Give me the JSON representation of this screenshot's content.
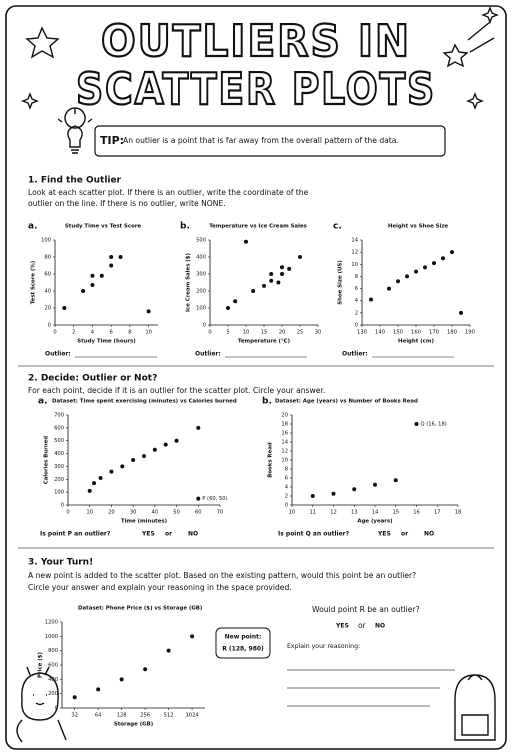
{
  "header": {
    "title_line1": "OUTLIERS IN",
    "title_line2": "SCATTER PLOTS",
    "tip_label": "TIP:",
    "tip_text": "An outlier is a point that is far away from the overall pattern of the data."
  },
  "section1": {
    "heading": "1. Find the Outlier",
    "instructions_line1": "Look at each scatter plot. If there is an outlier, write the coordinate of the",
    "instructions_line2": "outlier on the line. If there is no outlier, write NONE.",
    "answer_label": "Outlier:",
    "plots": [
      {
        "type": "scatter",
        "label": "a.",
        "title": "Study Time vs Test Score",
        "x_label": "Study Time (hours)",
        "y_label": "Test Score (%)",
        "x": [
          1,
          3,
          4,
          4,
          5,
          6,
          6,
          7,
          10
        ],
        "values": [
          20,
          40,
          47,
          58,
          58,
          70,
          80,
          80,
          16
        ],
        "xlim": [
          0,
          11
        ],
        "ylim": [
          0,
          100
        ],
        "xticks": [
          0,
          2,
          4,
          6,
          8,
          10
        ],
        "yticks": [
          0,
          20,
          40,
          60,
          80,
          100
        ]
      },
      {
        "type": "scatter",
        "label": "b.",
        "title": "Temperature vs Ice Cream Sales",
        "x_label": "Temperature (°C)",
        "y_label": "Ice Cream Sales ($)",
        "x": [
          5,
          7,
          10,
          12,
          15,
          17,
          17,
          19,
          20,
          20,
          22,
          25
        ],
        "values": [
          100,
          140,
          490,
          200,
          230,
          260,
          300,
          250,
          300,
          340,
          330,
          400
        ],
        "xlim": [
          0,
          30
        ],
        "ylim": [
          0,
          500
        ],
        "xticks": [
          0,
          5,
          10,
          15,
          20,
          25,
          30
        ],
        "yticks": [
          0,
          100,
          200,
          300,
          400,
          500
        ]
      },
      {
        "type": "scatter",
        "label": "c.",
        "title": "Height vs Shoe Size",
        "x_label": "Height (cm)",
        "y_label": "Shoe Size (US)",
        "x": [
          135,
          145,
          150,
          155,
          160,
          165,
          170,
          175,
          180,
          185
        ],
        "values": [
          4.2,
          6,
          7.2,
          8,
          8.8,
          9.5,
          10.2,
          11,
          12,
          2
        ],
        "xlim": [
          130,
          190
        ],
        "ylim": [
          0,
          14
        ],
        "xticks": [
          130,
          140,
          150,
          160,
          170,
          180,
          190
        ],
        "yticks": [
          0,
          2,
          4,
          6,
          8,
          10,
          12,
          14
        ]
      }
    ]
  },
  "section2": {
    "heading": "2. Decide: Outlier or Not?",
    "instructions": "For each point, decide if it is an outlier for the scatter plot. Circle your answer.",
    "plots": [
      {
        "type": "scatter",
        "label": "a.",
        "title": "Dataset: Time spent exercising (minutes) vs Calories burned",
        "x_label": "Time (minutes)",
        "y_label": "Calories Burned",
        "x": [
          10,
          12,
          15,
          20,
          25,
          30,
          35,
          40,
          45,
          50,
          60,
          60
        ],
        "values": [
          110,
          170,
          210,
          260,
          300,
          350,
          380,
          430,
          470,
          500,
          600,
          50
        ],
        "value_labels": [
          null,
          null,
          null,
          null,
          null,
          null,
          null,
          null,
          null,
          null,
          null,
          "P (60, 50)"
        ],
        "xlim": [
          0,
          70
        ],
        "ylim": [
          0,
          700
        ],
        "xticks": [
          0,
          10,
          20,
          30,
          40,
          50,
          60,
          70
        ],
        "yticks": [
          0,
          100,
          200,
          300,
          400,
          500,
          600,
          700
        ]
      },
      {
        "type": "scatter",
        "label": "b.",
        "title": "Dataset: Age (years) vs Number of Books Read",
        "x_label": "Age (years)",
        "y_label": "Books Read",
        "x": [
          11,
          12,
          13,
          14,
          15,
          16
        ],
        "values": [
          2,
          2.5,
          3.5,
          4.5,
          5.5,
          18
        ],
        "value_labels": [
          null,
          null,
          null,
          null,
          null,
          "Q (16, 18)"
        ],
        "xlim": [
          10,
          18
        ],
        "ylim": [
          0,
          20
        ],
        "xticks": [
          10,
          11,
          12,
          13,
          14,
          15,
          16,
          17,
          18
        ],
        "yticks": [
          0,
          2,
          4,
          6,
          8,
          10,
          12,
          14,
          16,
          18,
          20
        ]
      }
    ],
    "questions": [
      {
        "text": "Is point P an outlier?",
        "options": [
          "YES",
          "or",
          "NO"
        ]
      },
      {
        "text": "Is point Q an outlier?",
        "options": [
          "YES",
          "or",
          "NO"
        ]
      }
    ]
  },
  "section3": {
    "heading": "3. Your Turn!",
    "instructions_line1": "A new point is added to the scatter plot. Based on the existing pattern, would this point be an outlier?",
    "instructions_line2": "Circle your answer and explain your reasoning in the space provided.",
    "plot": {
      "type": "scatter",
      "title": "Dataset: Phone Price ($) vs Storage (GB)",
      "x_label": "Storage (GB)",
      "y_label": "Price ($)",
      "log_x": true,
      "x": [
        32,
        64,
        128,
        256,
        512,
        1024
      ],
      "values": [
        150,
        260,
        400,
        540,
        800,
        1000
      ],
      "xlim": [
        22,
        1500
      ],
      "ylim": [
        0,
        1200
      ],
      "xticks": [
        32,
        64,
        128,
        256,
        512,
        1024
      ],
      "yticks": [
        0,
        200,
        400,
        600,
        800,
        1000,
        1200
      ]
    },
    "new_point_label": "New point:",
    "new_point": "R (128, 980)",
    "question": "Would point R be an outlier?",
    "options": [
      "YES",
      "or",
      "NO"
    ],
    "explain_label": "Explain your reasoning:"
  }
}
